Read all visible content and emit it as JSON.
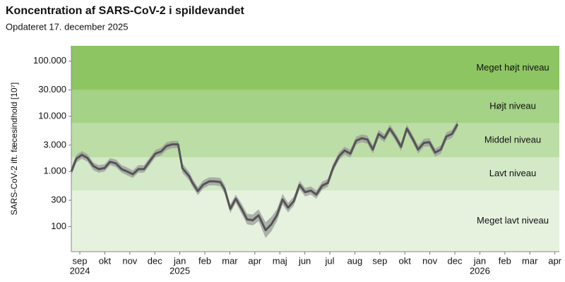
{
  "chart_data": {
    "type": "line",
    "title": "Koncentration af SARS-CoV-2 i spildevandet",
    "subtitle": "Opdateret 17. december 2025",
    "y_label": "SARS-CoV-2 ift. fæcesindhold [10⁷]",
    "log_y": true,
    "ylim": [
      35,
      190000
    ],
    "yticks": [
      100,
      300,
      {
        "value": 1000,
        "label": "1.000"
      },
      {
        "value": 3000,
        "label": "3.000"
      },
      {
        "value": 10000,
        "label": "10.000"
      },
      {
        "value": 30000,
        "label": "30.000"
      },
      {
        "value": 100000,
        "label": "100.000"
      }
    ],
    "xlim": [
      -0.34,
      19.18
    ],
    "xticks": [
      {
        "value": 0,
        "label": "sep"
      },
      {
        "value": 1,
        "label": "okt"
      },
      {
        "value": 2,
        "label": "nov"
      },
      {
        "value": 3,
        "label": "dec"
      },
      {
        "value": 4,
        "label": "jan"
      },
      {
        "value": 5,
        "label": "feb"
      },
      {
        "value": 6,
        "label": "mar"
      },
      {
        "value": 7,
        "label": "apr"
      },
      {
        "value": 8,
        "label": "maj"
      },
      {
        "value": 9,
        "label": "jun"
      },
      {
        "value": 10,
        "label": "jul"
      },
      {
        "value": 11,
        "label": "aug"
      },
      {
        "value": 12,
        "label": "sep"
      },
      {
        "value": 13,
        "label": "okt"
      },
      {
        "value": 14,
        "label": "nov"
      },
      {
        "value": 15,
        "label": "dec"
      },
      {
        "value": 16,
        "label": "jan"
      },
      {
        "value": 17,
        "label": "feb"
      },
      {
        "value": 18,
        "label": "mar"
      },
      {
        "value": 19,
        "label": "apr"
      }
    ],
    "year_labels": [
      {
        "value": 0,
        "label": "2024"
      },
      {
        "value": 4,
        "label": "2025"
      },
      {
        "value": 16,
        "label": "2026"
      }
    ],
    "zone_breaks": [
      450,
      1800,
      7500,
      30000
    ],
    "zones": [
      {
        "label": "Meget lavt niveau",
        "color": "#e6f2de"
      },
      {
        "label": "Lavt niveau",
        "color": "#d3e9c7"
      },
      {
        "label": "Middel niveau",
        "color": "#bcdea6"
      },
      {
        "label": "Højt niveau",
        "color": "#a4d286"
      },
      {
        "label": "Meget højt niveau",
        "color": "#8dc563"
      }
    ],
    "color": "#555555",
    "band_color": "#9a9a9a",
    "x": [
      -0.34,
      -0.14,
      0.08,
      0.31,
      0.54,
      0.76,
      0.99,
      1.21,
      1.44,
      1.67,
      1.89,
      2.12,
      2.34,
      2.57,
      2.8,
      3.02,
      3.25,
      3.47,
      3.7,
      3.93,
      4.1,
      4.38,
      4.49,
      4.72,
      4.94,
      5.17,
      5.4,
      5.62,
      5.79,
      6.02,
      6.24,
      6.47,
      6.69,
      6.92,
      7.15,
      7.43,
      7.66,
      7.88,
      8.11,
      8.33,
      8.56,
      8.79,
      9.01,
      9.24,
      9.46,
      9.69,
      9.92,
      10.14,
      10.37,
      10.59,
      10.82,
      11.05,
      11.27,
      11.5,
      11.72,
      11.95,
      12.18,
      12.4,
      12.63,
      12.85,
      13.08,
      13.3,
      13.53,
      13.76,
      13.98,
      14.21,
      14.44,
      14.66,
      14.89,
      15.11
    ],
    "values": [
      1000,
      1700,
      2000,
      1750,
      1250,
      1100,
      1150,
      1500,
      1400,
      1100,
      1000,
      890,
      1100,
      1100,
      1550,
      2100,
      2300,
      2900,
      3100,
      3100,
      1150,
      810,
      640,
      440,
      580,
      660,
      660,
      640,
      480,
      210,
      320,
      210,
      135,
      130,
      160,
      86,
      110,
      160,
      310,
      220,
      290,
      570,
      420,
      450,
      380,
      550,
      620,
      1200,
      1900,
      2400,
      2100,
      3600,
      4000,
      3800,
      2500,
      4800,
      4000,
      6000,
      4200,
      2800,
      6000,
      4000,
      2500,
      3300,
      3400,
      2200,
      2500,
      4300,
      4800,
      7200
    ],
    "band": {
      "lower": [
        850,
        1450,
        1700,
        1500,
        1050,
        950,
        1000,
        1300,
        1200,
        950,
        850,
        760,
        950,
        950,
        1300,
        1800,
        1950,
        2450,
        2650,
        2650,
        950,
        680,
        540,
        370,
        490,
        560,
        560,
        540,
        400,
        175,
        270,
        170,
        110,
        105,
        125,
        62,
        82,
        125,
        250,
        180,
        240,
        480,
        350,
        380,
        320,
        465,
        525,
        1020,
        1610,
        2040,
        1780,
        3050,
        3400,
        3200,
        2100,
        4050,
        3400,
        5100,
        3550,
        2350,
        5100,
        3400,
        2100,
        2800,
        2850,
        1850,
        2100,
        3650,
        4050,
        6100
      ],
      "upper": [
        1180,
        2000,
        2350,
        2050,
        1450,
        1300,
        1350,
        1750,
        1650,
        1300,
        1180,
        1050,
        1300,
        1300,
        1800,
        2450,
        2700,
        3400,
        3600,
        3600,
        1400,
        970,
        760,
        520,
        690,
        780,
        780,
        760,
        580,
        250,
        380,
        260,
        170,
        165,
        205,
        120,
        150,
        205,
        390,
        270,
        350,
        680,
        500,
        535,
        450,
        650,
        730,
        1410,
        2240,
        2820,
        2480,
        4250,
        4700,
        4500,
        2950,
        5700,
        4700,
        7100,
        4950,
        3300,
        7100,
        4700,
        2950,
        3900,
        4050,
        2600,
        2950,
        5100,
        5700,
        8500
      ]
    }
  }
}
